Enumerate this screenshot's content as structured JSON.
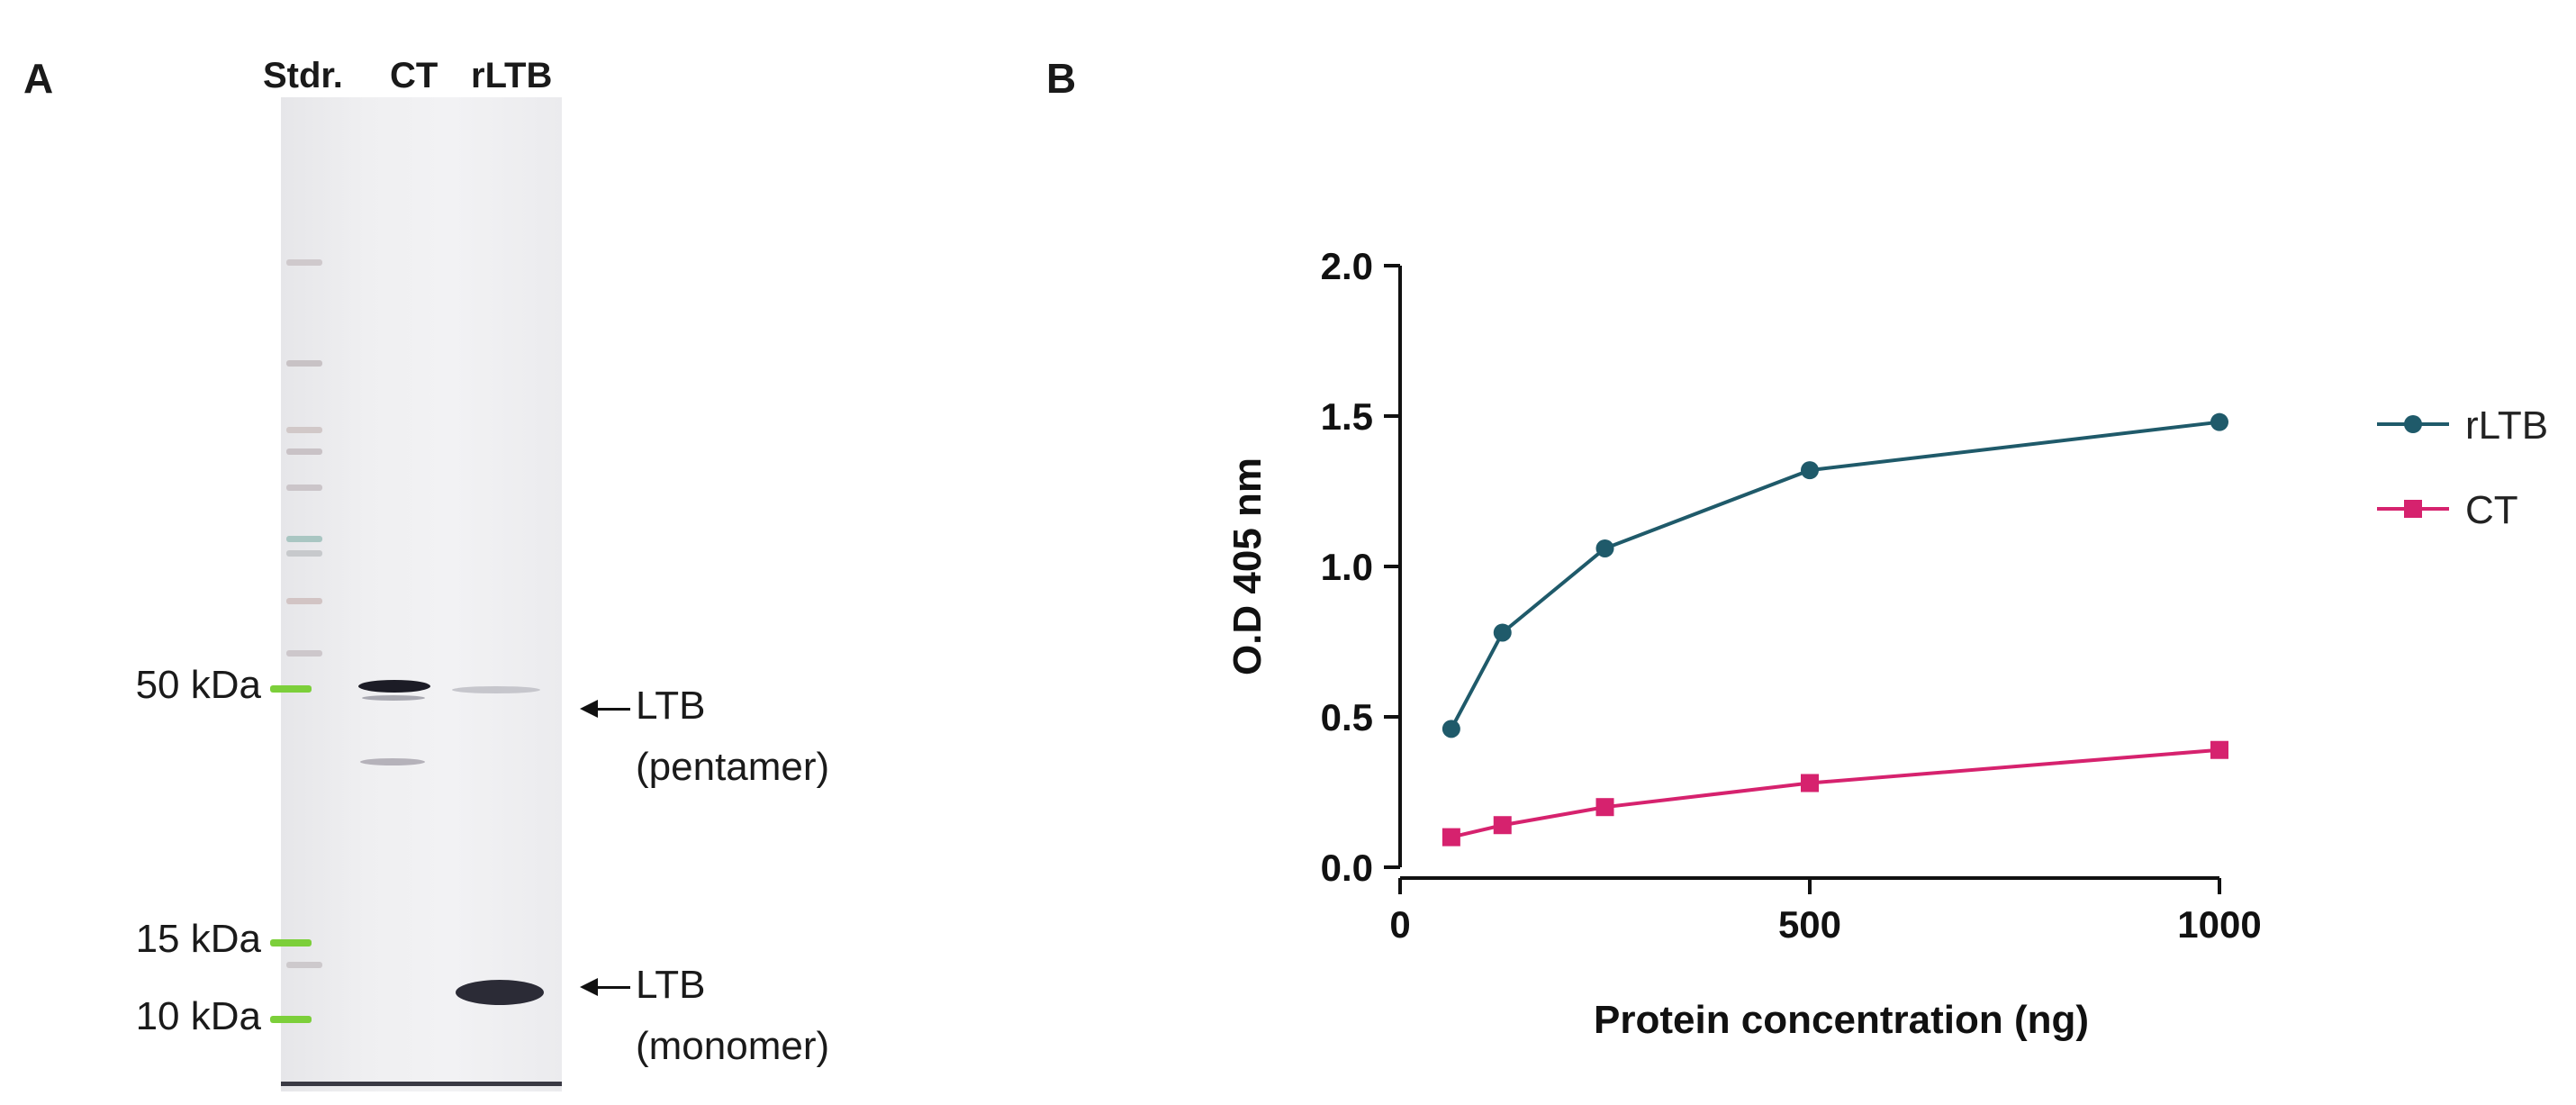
{
  "panel_a": {
    "letter": "A",
    "lanes": [
      "Stdr.",
      "CT",
      "rLTB"
    ],
    "markers": [
      "50 kDa",
      "15 kDa",
      "10 kDa"
    ],
    "annotations": [
      {
        "line1": "LTB",
        "line2": "(pentamer)"
      },
      {
        "line1": "LTB",
        "line2": "(monomer)"
      }
    ],
    "colors": {
      "marker": "#7ccf3a",
      "band": "#1c1c26"
    }
  },
  "panel_b": {
    "letter": "B"
  },
  "chart_data": {
    "type": "line",
    "title": "",
    "xlabel": "Protein concentration (ng)",
    "ylabel": "O.D 405 nm",
    "xlim": [
      0,
      1000
    ],
    "ylim": [
      0,
      2.0
    ],
    "xticks": [
      "0",
      "500",
      "1000"
    ],
    "yticks": [
      "0.0",
      "0.5",
      "1.0",
      "1.5",
      "2.0"
    ],
    "xtick_values": [
      0,
      500,
      1000
    ],
    "ytick_values": [
      0,
      0.5,
      1.0,
      1.5,
      2.0
    ],
    "legend_position": "right",
    "series": [
      {
        "name": "rLTB",
        "marker": "circle",
        "color": "#1f5a6a",
        "x": [
          62.5,
          125,
          250,
          500,
          1000
        ],
        "y": [
          0.46,
          0.78,
          1.06,
          1.32,
          1.48
        ]
      },
      {
        "name": "CT",
        "marker": "square",
        "color": "#d6226e",
        "x": [
          62.5,
          125,
          250,
          500,
          1000
        ],
        "y": [
          0.1,
          0.14,
          0.2,
          0.28,
          0.39
        ]
      }
    ]
  }
}
